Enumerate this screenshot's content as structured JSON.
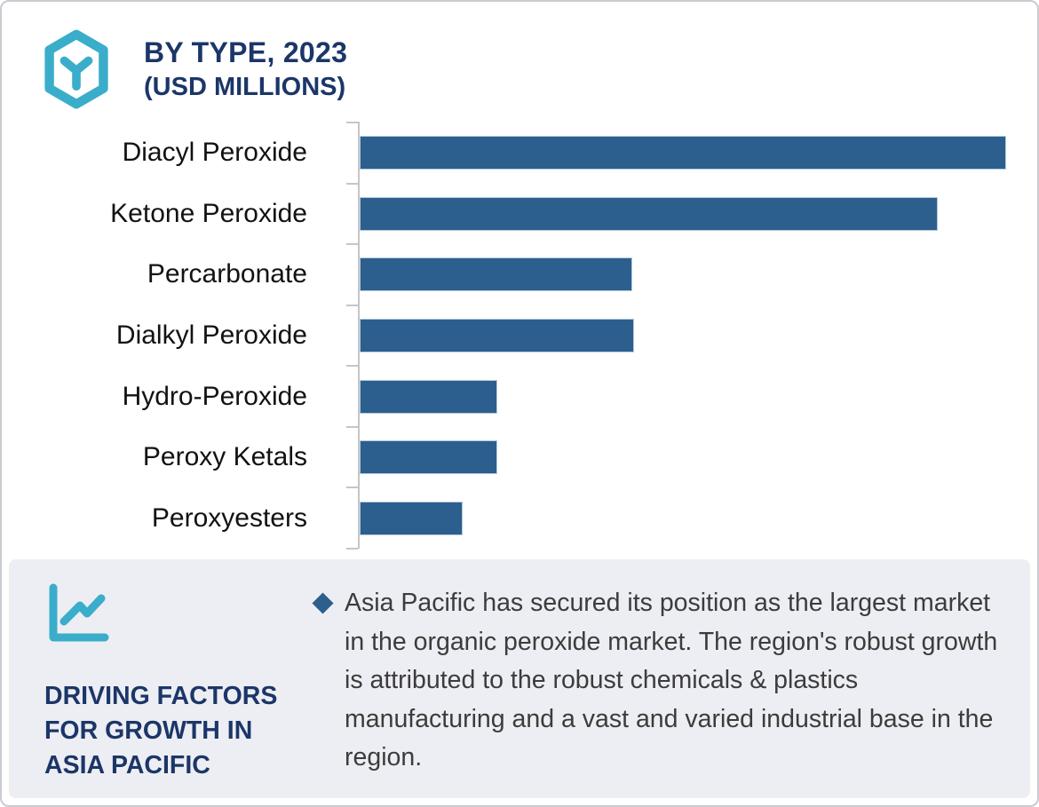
{
  "header": {
    "title_line1": "BY TYPE, 2023",
    "title_line2": "(USD MILLIONS)"
  },
  "chart_data": {
    "type": "bar",
    "orientation": "horizontal",
    "title": "BY TYPE, 2023 (USD MILLIONS)",
    "unit": "USD Millions (numeric axis not shown in image)",
    "categories": [
      "Diacyl Peroxide",
      "Ketone Peroxide",
      "Percarbonate",
      "Dialkyl Peroxide",
      "Hydro-Peroxide",
      "Peroxy Ketals",
      "Peroxyesters"
    ],
    "values": [
      100,
      89.4,
      42.2,
      42.4,
      21.3,
      21.3,
      15.9
    ],
    "values_note": "relative bar lengths as % of longest bar, estimated from pixels; no value labels or axis scale are visible",
    "bar_color": "#2d5f8e",
    "axis_color": "#c5c6c9",
    "legend": false,
    "gridlines": false
  },
  "panel": {
    "heading": "DRIVING FACTORS FOR GROWTH IN ASIA PACIFIC",
    "paragraph": "Asia Pacific has secured its position as the largest market in the organic peroxide market. The region's robust growth is attributed to the robust chemicals & plastics manufacturing and a vast and varied industrial base in  the region."
  },
  "colors": {
    "accent_teal": "#3aadca",
    "navy": "#1b3668",
    "bar_blue": "#2d5f8e",
    "panel_bg": "#edeef3",
    "card_border": "#c9cbd1",
    "body_text": "#3c3c3c"
  }
}
